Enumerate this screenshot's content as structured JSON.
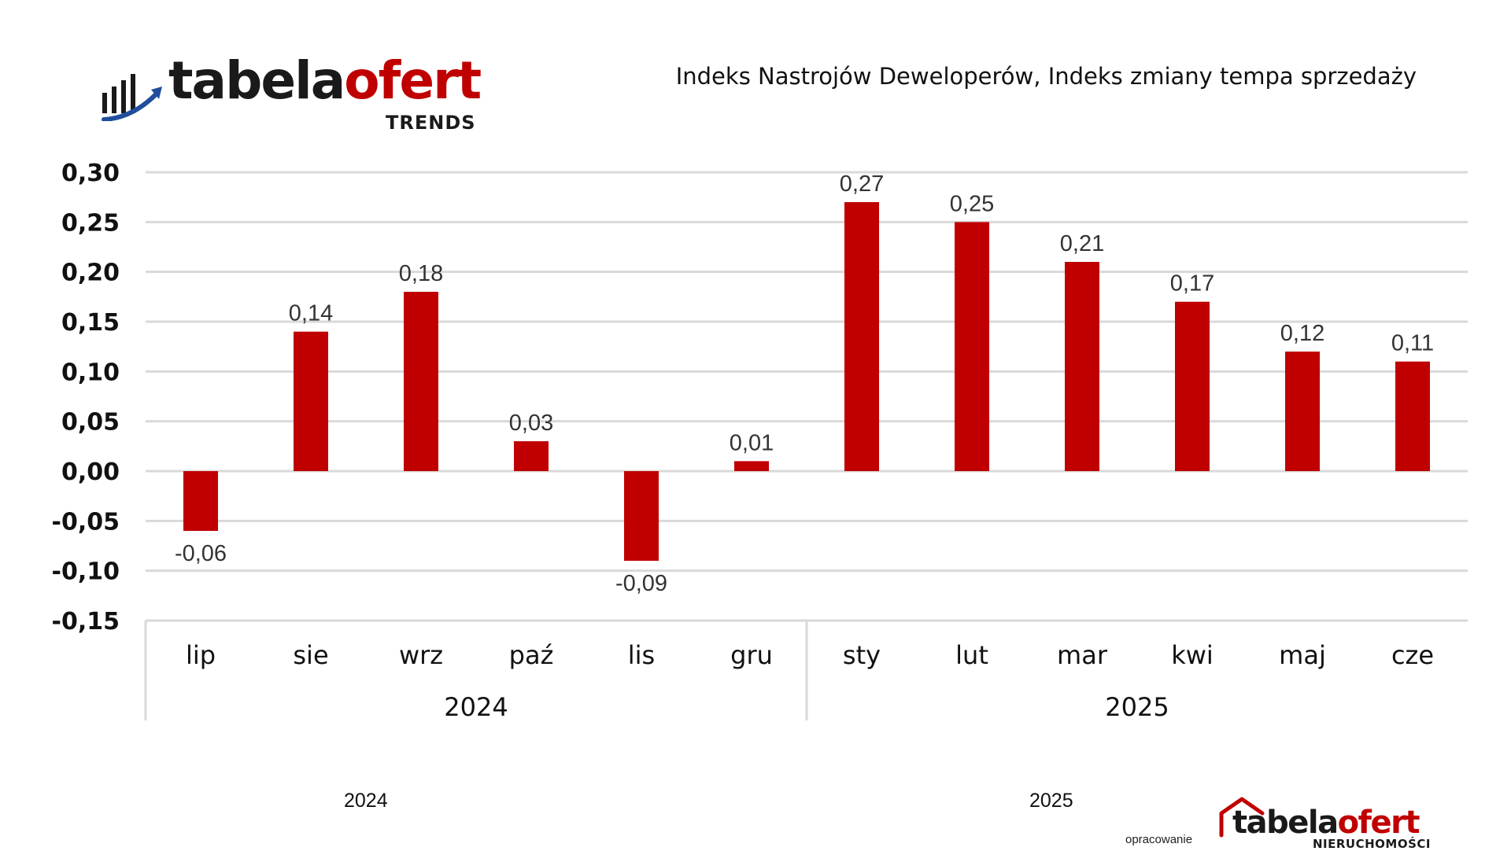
{
  "header": {
    "logo_main_dark": "tabela",
    "logo_main_red": "ofert",
    "logo_sub": "TRENDS",
    "title": "Indeks Nastrojów Deweloperów, Indeks zmiany tempa sprzedaży"
  },
  "colors": {
    "bar": "#c00000",
    "grid": "#d9d9d9",
    "axis_text": "#111111",
    "logo_blue": "#1f4e9c"
  },
  "chart_data": {
    "type": "bar",
    "categories": [
      "lip",
      "sie",
      "wrz",
      "paź",
      "lis",
      "gru",
      "sty",
      "lut",
      "mar",
      "kwi",
      "maj",
      "cze"
    ],
    "groups": [
      {
        "label": "2024",
        "count": 6
      },
      {
        "label": "2025",
        "count": 6
      }
    ],
    "values": [
      -0.06,
      0.14,
      0.18,
      0.03,
      -0.09,
      0.01,
      0.27,
      0.25,
      0.21,
      0.17,
      0.12,
      0.11
    ],
    "value_labels": [
      "-0,06",
      "0,14",
      "0,18",
      "0,03",
      "-0,09",
      "0,01",
      "0,27",
      "0,25",
      "0,21",
      "0,17",
      "0,12",
      "0,11"
    ],
    "y_ticks": [
      0.3,
      0.25,
      0.2,
      0.15,
      0.1,
      0.05,
      0.0,
      -0.05,
      -0.1,
      -0.15
    ],
    "y_tick_labels": [
      "0,30",
      "0,25",
      "0,20",
      "0,15",
      "0,10",
      "0,05",
      "0,00",
      "-0,05",
      "-0,10",
      "-0,15"
    ],
    "ylim": [
      -0.15,
      0.3
    ],
    "grid": true,
    "legend": "none"
  },
  "footer": {
    "year_left": "2024",
    "year_right": "2025",
    "credit": "opracowanie",
    "logo_dark": "tabela",
    "logo_red": "ofert",
    "logo_sub": "NIERUCHOMOŚCI"
  }
}
